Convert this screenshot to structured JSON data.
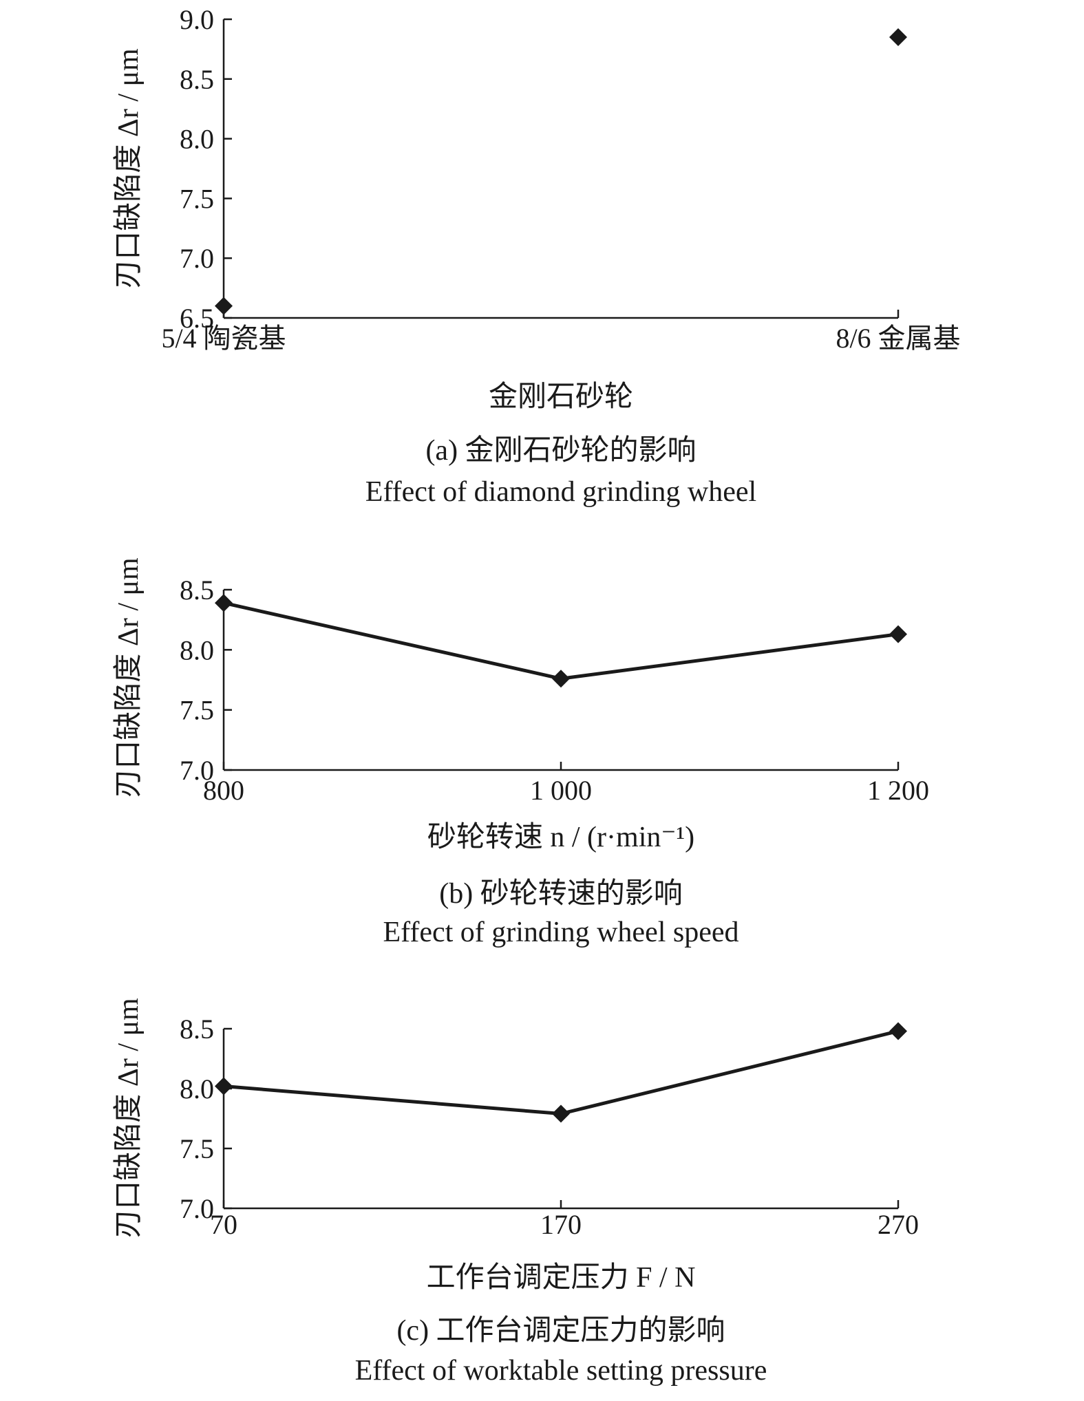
{
  "chart_data": [
    {
      "type": "scatter",
      "categories": [
        "5/4 陶瓷基",
        "8/6 金属基"
      ],
      "values": [
        6.6,
        8.85
      ],
      "ylabel": "刃口缺陷度 Δr / μm",
      "xlabel": "金刚石砂轮",
      "ylim": [
        6.5,
        9.0
      ],
      "yticks": [
        "6.5",
        "7.0",
        "7.5",
        "8.0",
        "8.5",
        "9.0"
      ],
      "caption_cn": "(a) 金刚石砂轮的影响",
      "caption_en": "Effect of diamond grinding wheel",
      "marker": "diamond",
      "grid": false
    },
    {
      "type": "line",
      "categories": [
        "800",
        "1 000",
        "1 200"
      ],
      "values": [
        8.39,
        7.76,
        8.13
      ],
      "ylabel": "刃口缺陷度 Δr / μm",
      "xlabel": "砂轮转速 n / (r·min⁻¹)",
      "ylim": [
        7.0,
        8.5
      ],
      "yticks": [
        "7.0",
        "7.5",
        "8.0",
        "8.5"
      ],
      "caption_cn": "(b) 砂轮转速的影响",
      "caption_en": "Effect of grinding wheel speed",
      "marker": "diamond",
      "grid": false
    },
    {
      "type": "line",
      "categories": [
        "70",
        "170",
        "270"
      ],
      "values": [
        8.02,
        7.79,
        8.48
      ],
      "ylabel": "刃口缺陷度 Δr / μm",
      "xlabel": "工作台调定压力 F / N",
      "ylim": [
        7.0,
        8.5
      ],
      "yticks": [
        "7.0",
        "7.5",
        "8.0",
        "8.5"
      ],
      "caption_cn": "(c) 工作台调定压力的影响",
      "caption_en": "Effect of worktable setting pressure",
      "marker": "diamond",
      "grid": false
    }
  ],
  "colors": {
    "ink": "#1a1a1a"
  }
}
